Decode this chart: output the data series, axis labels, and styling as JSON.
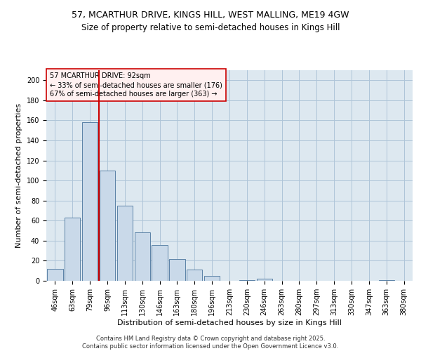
{
  "title1": "57, MCARTHUR DRIVE, KINGS HILL, WEST MALLING, ME19 4GW",
  "title2": "Size of property relative to semi-detached houses in Kings Hill",
  "xlabel": "Distribution of semi-detached houses by size in Kings Hill",
  "ylabel": "Number of semi-detached properties",
  "categories": [
    "46sqm",
    "63sqm",
    "79sqm",
    "96sqm",
    "113sqm",
    "130sqm",
    "146sqm",
    "163sqm",
    "180sqm",
    "196sqm",
    "213sqm",
    "230sqm",
    "246sqm",
    "263sqm",
    "280sqm",
    "297sqm",
    "313sqm",
    "330sqm",
    "347sqm",
    "363sqm",
    "380sqm"
  ],
  "values": [
    12,
    63,
    158,
    110,
    75,
    48,
    36,
    22,
    11,
    5,
    0,
    1,
    2,
    0,
    0,
    0,
    0,
    0,
    0,
    1,
    0
  ],
  "bar_color": "#c9d9e9",
  "bar_edge_color": "#5b82a6",
  "grid_color": "#aec4d8",
  "background_color": "#dde8f0",
  "vline_color": "#cc0000",
  "annotation_text": "57 MCARTHUR DRIVE: 92sqm\n← 33% of semi-detached houses are smaller (176)\n67% of semi-detached houses are larger (363) →",
  "annotation_box_facecolor": "#fff0f0",
  "annotation_edge_color": "#cc0000",
  "ylim": [
    0,
    210
  ],
  "yticks": [
    0,
    20,
    40,
    60,
    80,
    100,
    120,
    140,
    160,
    180,
    200
  ],
  "footnote": "Contains HM Land Registry data © Crown copyright and database right 2025.\nContains public sector information licensed under the Open Government Licence v3.0.",
  "title_fontsize": 9,
  "subtitle_fontsize": 8.5,
  "axis_label_fontsize": 8,
  "tick_fontsize": 7,
  "annotation_fontsize": 7,
  "footnote_fontsize": 6
}
